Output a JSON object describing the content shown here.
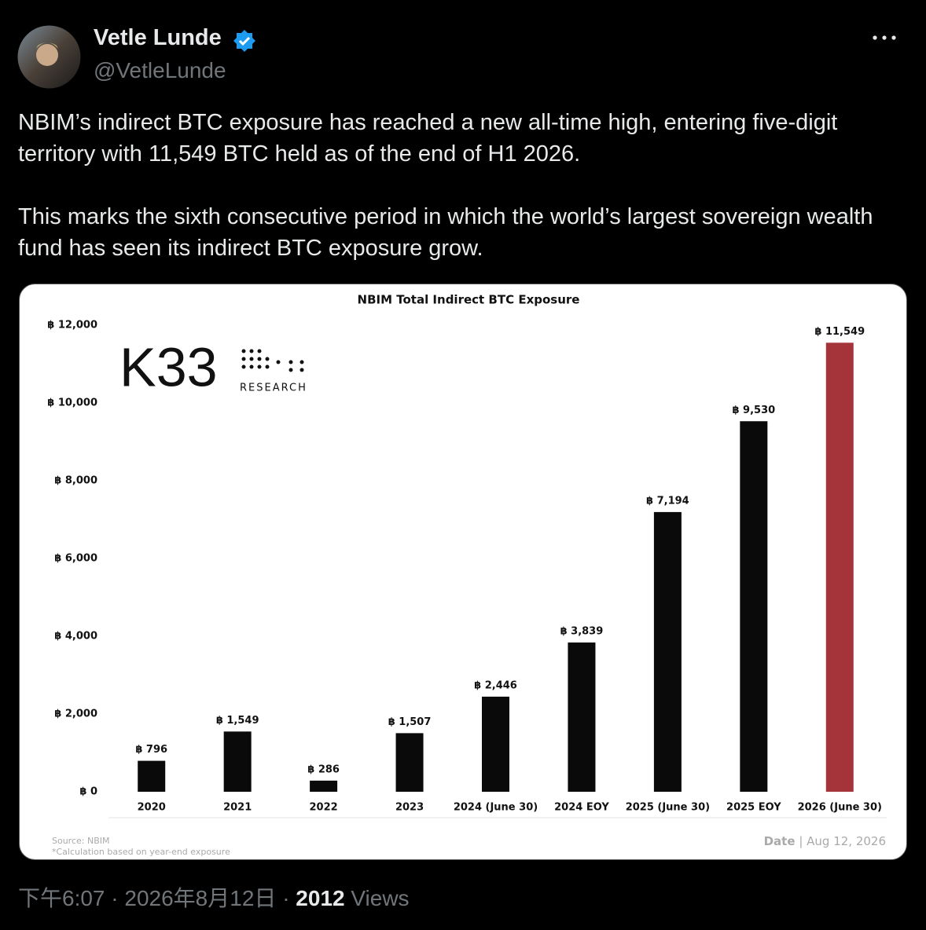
{
  "author": {
    "name": "Vetle Lunde",
    "handle": "@VetleLunde"
  },
  "body": [
    "NBIM’s indirect BTC exposure has reached a new all-time high, entering five-digit territory with 11,549 BTC held as of the end of H1 2026.",
    "This marks the sixth consecutive period in which the world’s largest sovereign wealth fund has seen its indirect BTC exposure grow."
  ],
  "logo": {
    "name": "K33",
    "subtitle": "RESEARCH"
  },
  "chart_data": {
    "type": "bar",
    "title": "NBIM Total Indirect BTC Exposure",
    "categories": [
      "2020",
      "2021",
      "2022",
      "2023",
      "2024 (June 30)",
      "2024 EOY",
      "2025 (June 30)",
      "2025 EOY",
      "2026 (June 30)"
    ],
    "values": [
      796,
      1549,
      286,
      1507,
      2446,
      3839,
      7194,
      9530,
      11549
    ],
    "value_labels": [
      "฿ 796",
      "฿ 1,549",
      "฿ 286",
      "฿ 1,507",
      "฿ 2,446",
      "฿ 3,839",
      "฿ 7,194",
      "฿ 9,530",
      "฿ 11,549"
    ],
    "colors": [
      "#0a0a0a",
      "#0a0a0a",
      "#0a0a0a",
      "#0a0a0a",
      "#0a0a0a",
      "#0a0a0a",
      "#0a0a0a",
      "#0a0a0a",
      "#a4343a"
    ],
    "ylim": [
      0,
      12000
    ],
    "yticks": [
      {
        "value": 0,
        "label": "฿ 0"
      },
      {
        "value": 2000,
        "label": "฿ 2,000"
      },
      {
        "value": 4000,
        "label": "฿ 4,000"
      },
      {
        "value": 6000,
        "label": "฿ 6,000"
      },
      {
        "value": 8000,
        "label": "฿ 8,000"
      },
      {
        "value": 10000,
        "label": "฿ 10,000"
      },
      {
        "value": 12000,
        "label": "฿ 12,000"
      }
    ],
    "grid": false,
    "source": "Source:  NBIM",
    "note": "*Calculation based on year-end exposure",
    "date_label": "Date",
    "date": "| Aug 12, 2026"
  },
  "footer": {
    "time": "下午6:07",
    "separator": "·",
    "date": "2026年8月12日",
    "views_count": "2012",
    "views_label": "Views"
  }
}
